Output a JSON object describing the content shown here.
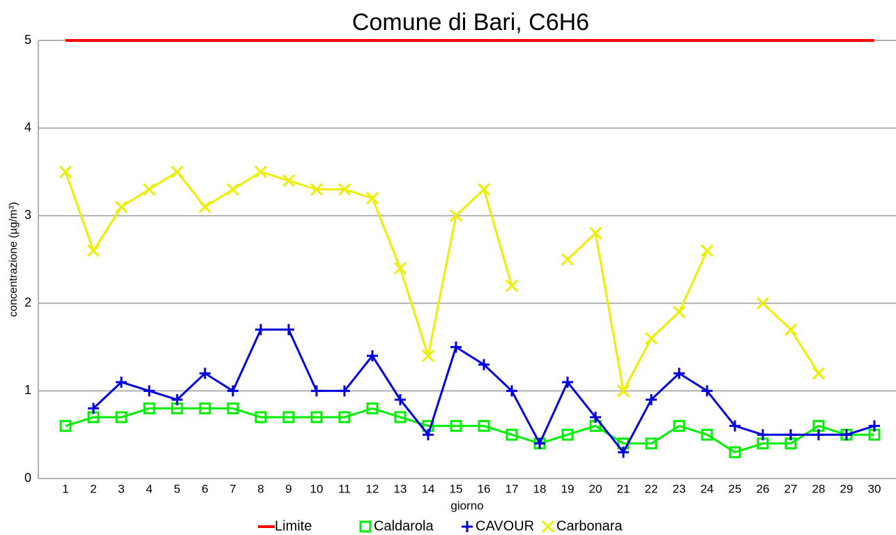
{
  "chart_data": {
    "type": "line",
    "title": "Comune di Bari, C6H6",
    "x_label": "giorno",
    "y_label": "concentrazione (µg/m³)",
    "categories": [
      "1",
      "2",
      "3",
      "4",
      "5",
      "6",
      "7",
      "8",
      "9",
      "10",
      "11",
      "12",
      "13",
      "14",
      "15",
      "16",
      "17",
      "18",
      "19",
      "20",
      "21",
      "22",
      "23",
      "24",
      "25",
      "26",
      "27",
      "28",
      "29",
      "30"
    ],
    "ylim": [
      0,
      5
    ],
    "yticks": [
      0,
      1,
      2,
      3,
      4,
      5
    ],
    "grid": true,
    "legend": "bottom",
    "series": [
      {
        "name": "Limite",
        "color": "#ff0000",
        "values": [
          5,
          5,
          5,
          5,
          5,
          5,
          5,
          5,
          5,
          5,
          5,
          5,
          5,
          5,
          5,
          5,
          5,
          5,
          5,
          5,
          5,
          5,
          5,
          5,
          5,
          5,
          5,
          5,
          5,
          5
        ]
      },
      {
        "name": "Caldarola",
        "color": "#00ee00",
        "values": [
          0.6,
          0.7,
          0.7,
          0.8,
          0.8,
          0.8,
          0.8,
          0.7,
          0.7,
          0.7,
          0.7,
          0.8,
          0.7,
          0.6,
          0.6,
          0.6,
          0.5,
          0.4,
          0.5,
          0.6,
          0.4,
          0.4,
          0.6,
          0.5,
          0.3,
          0.4,
          0.4,
          0.6,
          0.5,
          0.5
        ]
      },
      {
        "name": "CAVOUR",
        "color": "#0000dd",
        "values": [
          null,
          0.8,
          1.1,
          1.0,
          0.9,
          1.2,
          1.0,
          1.7,
          1.7,
          1.0,
          1.0,
          1.4,
          0.9,
          0.5,
          1.5,
          1.3,
          1.0,
          0.4,
          1.1,
          0.7,
          0.3,
          0.9,
          1.2,
          1.0,
          0.6,
          0.5,
          0.5,
          0.5,
          0.5,
          0.6
        ]
      },
      {
        "name": "Carbonara",
        "color": "#eeee00",
        "values": [
          3.5,
          2.6,
          3.1,
          3.3,
          3.5,
          3.1,
          3.3,
          3.5,
          3.4,
          3.3,
          3.3,
          3.2,
          2.4,
          1.4,
          3.0,
          3.3,
          2.2,
          null,
          2.5,
          2.8,
          1.0,
          1.6,
          1.9,
          2.6,
          null,
          2.0,
          1.7,
          1.2,
          null,
          null
        ]
      }
    ]
  }
}
